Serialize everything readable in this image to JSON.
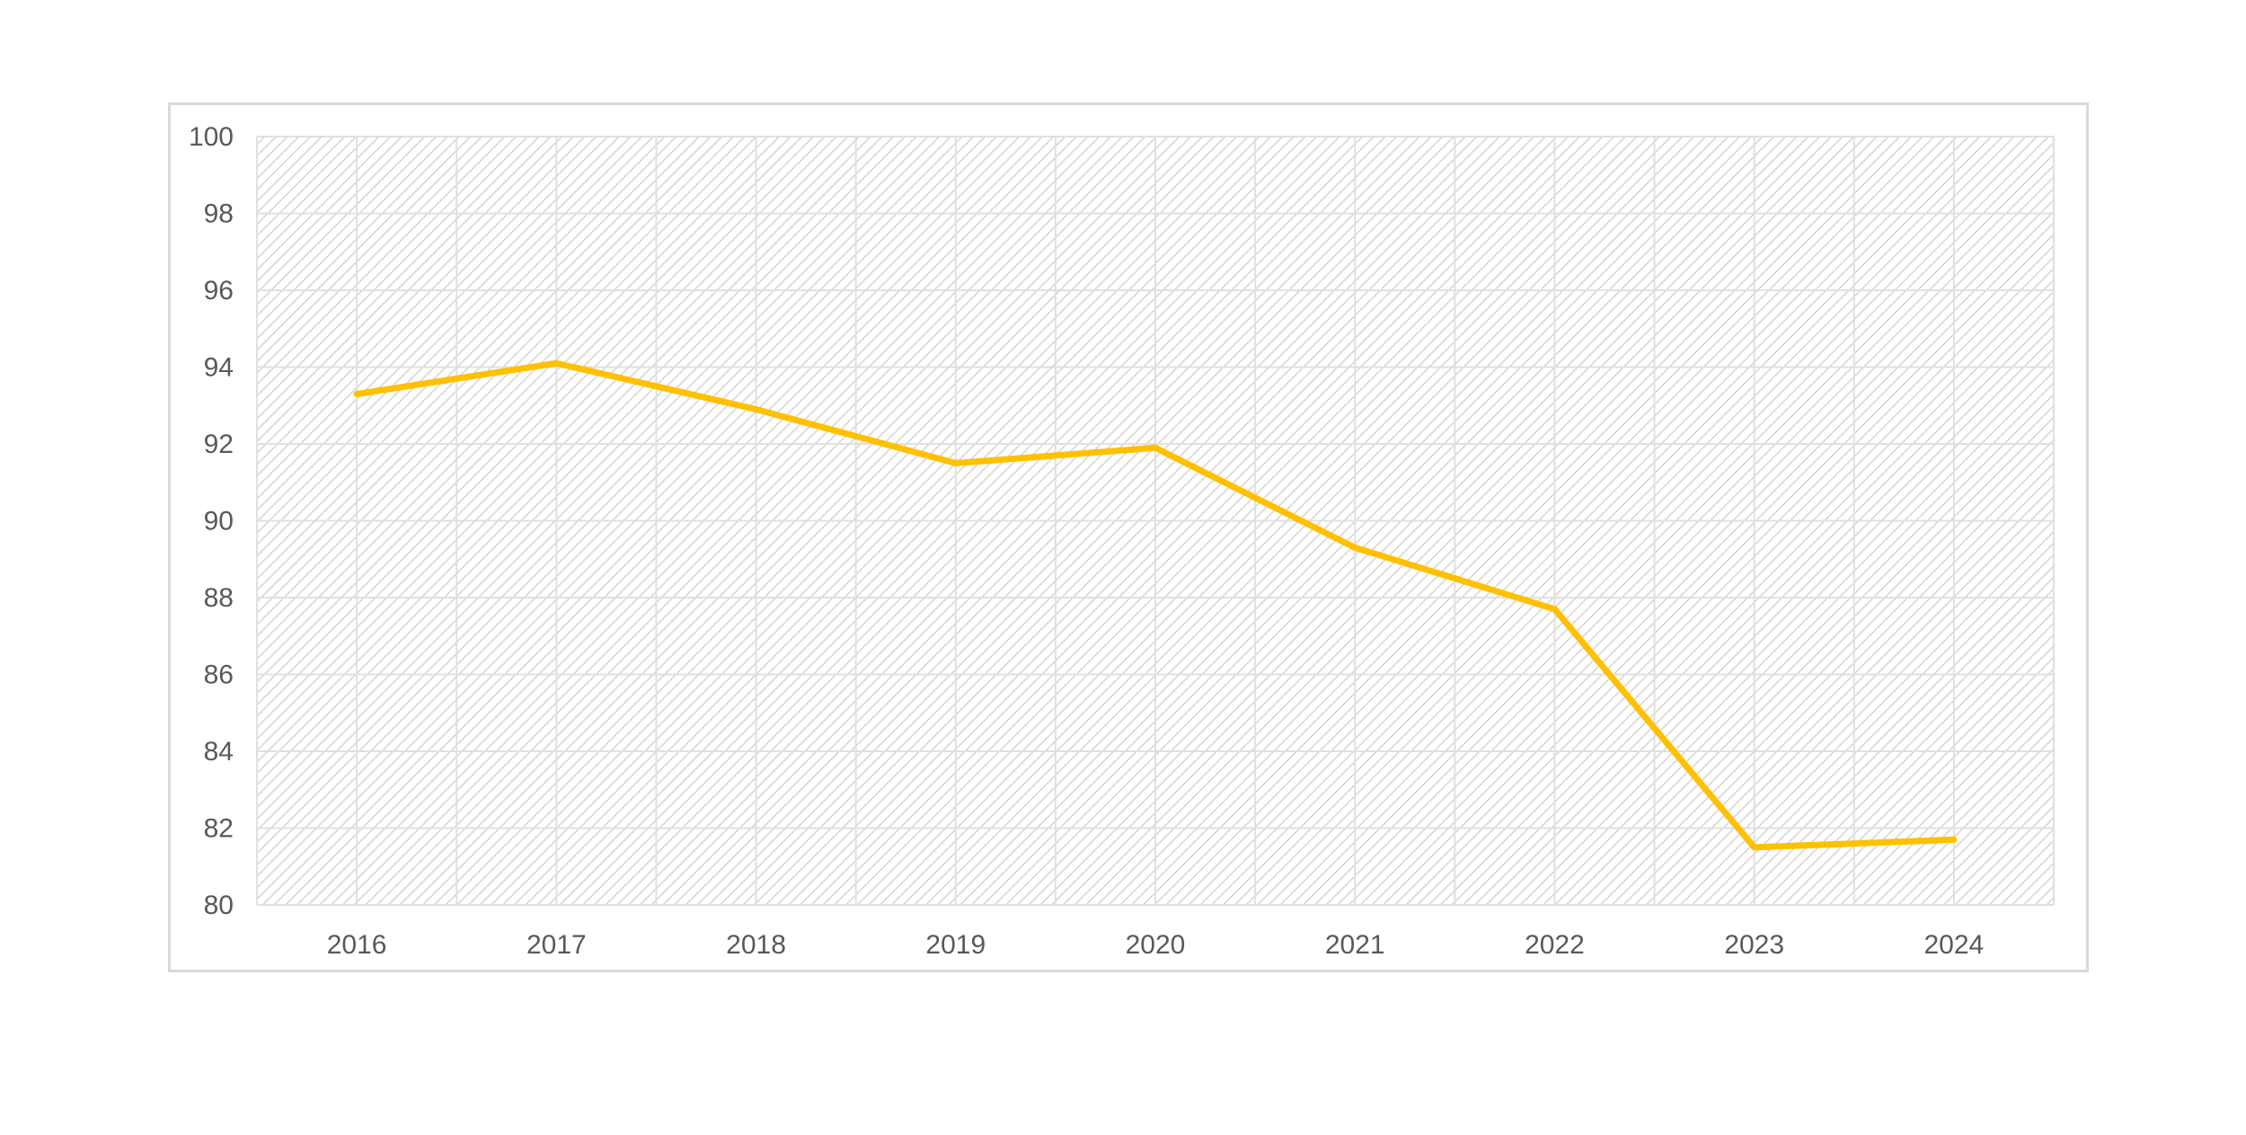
{
  "chart_data": {
    "type": "line",
    "title": "",
    "xlabel": "",
    "ylabel": "",
    "categories": [
      "2016",
      "2017",
      "2018",
      "2019",
      "2020",
      "2021",
      "2022",
      "2023",
      "2024"
    ],
    "series": [
      {
        "values": [
          93.3,
          94.1,
          92.9,
          91.5,
          91.9,
          89.3,
          87.7,
          81.5,
          81.7
        ]
      }
    ],
    "ylim": [
      80,
      100
    ],
    "yticks": [
      100,
      98,
      96,
      94,
      92,
      90,
      88,
      86,
      84,
      82,
      80
    ],
    "grid": true,
    "legend": "none",
    "colors": {
      "line": "#FFC000",
      "grid": "#e0e0e0",
      "plot_hatch": "#d4d4d4",
      "frame": "#d9d9d9",
      "tick_text": "#595959"
    }
  }
}
